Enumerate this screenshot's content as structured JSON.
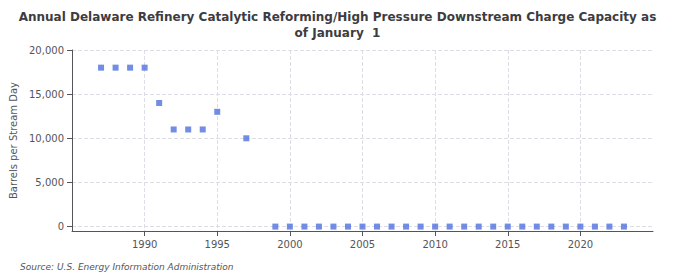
{
  "chart_data": {
    "type": "scatter",
    "title": "Annual Delaware Refinery Catalytic Reforming/High Pressure Downstream Charge Capacity as\nof January  1",
    "ylabel": "Barrels per Stream Day",
    "annotation": "Source: U.S. Energy Information Administration",
    "x": [
      1987,
      1988,
      1989,
      1990,
      1991,
      1992,
      1993,
      1994,
      1995,
      1997,
      1999,
      2000,
      2001,
      2002,
      2003,
      2004,
      2005,
      2006,
      2007,
      2008,
      2009,
      2010,
      2011,
      2012,
      2013,
      2014,
      2015,
      2016,
      2017,
      2018,
      2019,
      2020,
      2021,
      2022,
      2023
    ],
    "values": [
      18000,
      18000,
      18000,
      18000,
      14000,
      11000,
      11000,
      11000,
      13000,
      10000,
      0,
      0,
      0,
      0,
      0,
      0,
      0,
      0,
      0,
      0,
      0,
      0,
      0,
      0,
      0,
      0,
      0,
      0,
      0,
      0,
      0,
      0,
      0,
      0,
      0
    ],
    "xlim": [
      1985,
      2025
    ],
    "xticks": [
      1990,
      1995,
      2000,
      2005,
      2010,
      2015,
      2020
    ],
    "ylim": [
      -500,
      20000
    ],
    "yticks": [
      0,
      {
        "value": 5000,
        "label": "5,000"
      },
      {
        "value": 10000,
        "label": "10,000"
      },
      {
        "value": 15000,
        "label": "15,000"
      },
      {
        "value": 20000,
        "label": "20,000"
      }
    ],
    "marker": "square",
    "grid": true
  }
}
